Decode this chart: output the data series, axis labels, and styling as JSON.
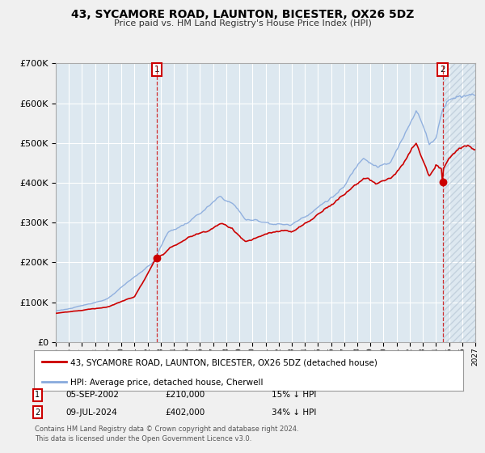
{
  "title": "43, SYCAMORE ROAD, LAUNTON, BICESTER, OX26 5DZ",
  "subtitle": "Price paid vs. HM Land Registry's House Price Index (HPI)",
  "legend_property": "43, SYCAMORE ROAD, LAUNTON, BICESTER, OX26 5DZ (detached house)",
  "legend_hpi": "HPI: Average price, detached house, Cherwell",
  "transaction1_date": "05-SEP-2002",
  "transaction1_price": 210000,
  "transaction1_pct": "15% ↓ HPI",
  "transaction2_date": "09-JUL-2024",
  "transaction2_price": 402000,
  "transaction2_pct": "34% ↓ HPI",
  "footer": "Contains HM Land Registry data © Crown copyright and database right 2024.\nThis data is licensed under the Open Government Licence v3.0.",
  "property_color": "#cc0000",
  "hpi_color": "#88aadd",
  "plot_bg_color": "#dde8f0",
  "grid_color": "#ffffff",
  "ylim": [
    0,
    700000
  ],
  "xlim_start": 1995.0,
  "xlim_end": 2027.0,
  "sale1_year": 2002.708,
  "sale1_value": 210000,
  "sale2_year": 2024.521,
  "sale2_value": 402000
}
